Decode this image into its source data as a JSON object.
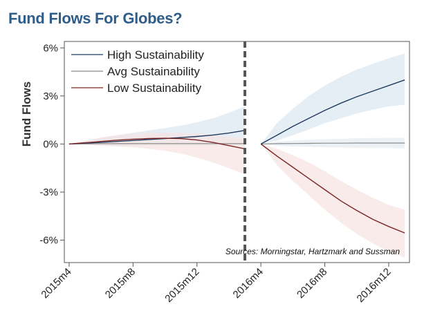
{
  "title": "Fund Flows For Globes?",
  "chart_data": {
    "type": "line",
    "title": "Fund Flows For Globes?",
    "xlabel": "",
    "ylabel": "Fund Flows",
    "ylim": [
      -7.4,
      6.4
    ],
    "xlim": [
      -0.3,
      21.3
    ],
    "x_ticks": [
      {
        "x": 0,
        "label": "2015m4"
      },
      {
        "x": 4,
        "label": "2015m8"
      },
      {
        "x": 8,
        "label": "2015m12"
      },
      {
        "x": 12,
        "label": "2016m4"
      },
      {
        "x": 16,
        "label": "2016m8"
      },
      {
        "x": 20,
        "label": "2016m12"
      }
    ],
    "y_ticks": [
      {
        "y": 6,
        "label": "6%"
      },
      {
        "y": 3,
        "label": "3%"
      },
      {
        "y": 0,
        "label": "0%"
      },
      {
        "y": -3,
        "label": "-3%"
      },
      {
        "y": -6,
        "label": "-6%"
      }
    ],
    "event_line_x": 11,
    "grid": false,
    "legend_position": "top-left",
    "annotation": "Sources: Morningstar, Hartzmark and Sussman",
    "series": [
      {
        "name": "High Sustainability",
        "color": "#1f3a5f",
        "band_color": "#dde8f1",
        "x": [
          0,
          1,
          2,
          3,
          4,
          5,
          6,
          7,
          8,
          9,
          10,
          11,
          12,
          13,
          14,
          15,
          16,
          17,
          18,
          19,
          20,
          21
        ],
        "values": [
          0,
          0.05,
          0.1,
          0.16,
          0.22,
          0.28,
          0.34,
          0.4,
          0.47,
          0.56,
          0.68,
          0.85,
          0,
          0.55,
          1.1,
          1.6,
          2.1,
          2.55,
          2.95,
          3.3,
          3.65,
          4.0
        ],
        "lower": [
          0,
          -0.05,
          -0.1,
          -0.12,
          -0.12,
          -0.1,
          -0.08,
          -0.05,
          0,
          0.05,
          0.1,
          0.15,
          0,
          0.2,
          0.55,
          0.9,
          1.3,
          1.6,
          1.9,
          2.15,
          2.35,
          2.45
        ],
        "upper": [
          0,
          0.2,
          0.4,
          0.55,
          0.7,
          0.85,
          1.0,
          1.15,
          1.35,
          1.6,
          1.95,
          2.35,
          0,
          1.3,
          2.2,
          3.0,
          3.65,
          4.2,
          4.65,
          5.0,
          5.35,
          5.65
        ]
      },
      {
        "name": "Avg Sustainability",
        "color": "#8a8a8a",
        "band_color": "#e6ecf2",
        "x": [
          0,
          1,
          2,
          3,
          4,
          5,
          6,
          7,
          8,
          9,
          10,
          11,
          12,
          13,
          14,
          15,
          16,
          17,
          18,
          19,
          20,
          21
        ],
        "values": [
          0,
          0.01,
          0.02,
          0.02,
          0.02,
          0.02,
          0.02,
          0.02,
          0.02,
          0.02,
          0.02,
          0.02,
          0,
          0.02,
          0.03,
          0.04,
          0.05,
          0.05,
          0.06,
          0.06,
          0.06,
          0.06
        ],
        "lower": [
          0,
          -0.03,
          -0.05,
          -0.06,
          -0.07,
          -0.08,
          -0.09,
          -0.1,
          -0.11,
          -0.12,
          -0.13,
          -0.14,
          0,
          -0.1,
          -0.15,
          -0.18,
          -0.2,
          -0.22,
          -0.24,
          -0.25,
          -0.26,
          -0.27
        ],
        "upper": [
          0,
          0.05,
          0.09,
          0.1,
          0.11,
          0.12,
          0.13,
          0.14,
          0.15,
          0.16,
          0.17,
          0.18,
          0,
          0.14,
          0.21,
          0.26,
          0.3,
          0.32,
          0.36,
          0.37,
          0.38,
          0.39
        ]
      },
      {
        "name": "Low Sustainability",
        "color": "#7b2525",
        "band_color": "#f5e4e3",
        "x": [
          0,
          1,
          2,
          3,
          4,
          5,
          6,
          7,
          8,
          9,
          10,
          11,
          12,
          13,
          14,
          15,
          16,
          17,
          18,
          19,
          20,
          21
        ],
        "values": [
          0,
          0.08,
          0.16,
          0.24,
          0.3,
          0.34,
          0.36,
          0.34,
          0.25,
          0.1,
          -0.1,
          -0.3,
          0,
          -0.75,
          -1.45,
          -2.15,
          -2.85,
          -3.55,
          -4.15,
          -4.7,
          -5.15,
          -5.55
        ],
        "lower": [
          0,
          -0.05,
          -0.1,
          -0.15,
          -0.2,
          -0.3,
          -0.42,
          -0.6,
          -0.85,
          -1.15,
          -1.5,
          -1.9,
          0,
          -1.3,
          -2.3,
          -3.2,
          -4.1,
          -4.9,
          -5.6,
          -6.2,
          -6.7,
          -7.1
        ],
        "upper": [
          0,
          0.2,
          0.4,
          0.55,
          0.65,
          0.7,
          0.72,
          0.7,
          0.65,
          0.55,
          0.45,
          0.35,
          0,
          -0.3,
          -0.7,
          -1.15,
          -1.7,
          -2.3,
          -2.85,
          -3.35,
          -3.8,
          -4.1
        ]
      }
    ]
  }
}
